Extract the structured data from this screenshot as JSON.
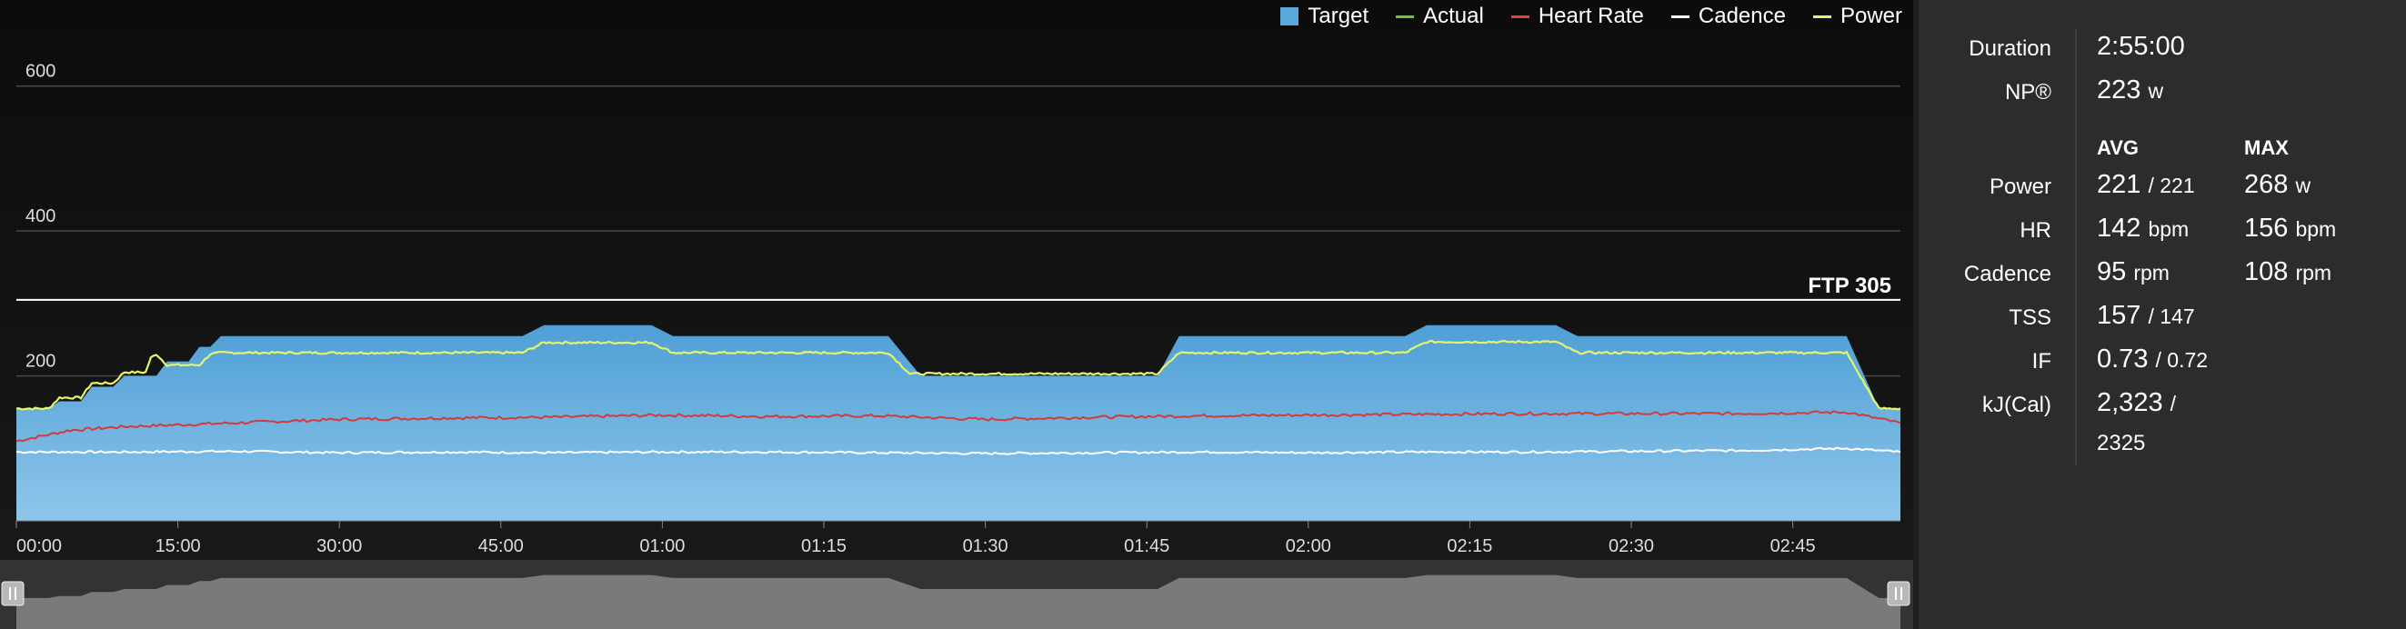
{
  "legend": [
    {
      "label": "Target",
      "kind": "box",
      "color": "#5aa8dc"
    },
    {
      "label": "Actual",
      "kind": "line",
      "color": "#6cc644"
    },
    {
      "label": "Heart Rate",
      "kind": "line",
      "color": "#e0443e"
    },
    {
      "label": "Cadence",
      "kind": "line",
      "color": "#ffffff"
    },
    {
      "label": "Power",
      "kind": "line",
      "color": "#e6f46a"
    }
  ],
  "colors": {
    "target": "#5aa8dc",
    "power": "#e6f46a",
    "heart_rate": "#d6393a",
    "cadence": "#ffffff",
    "navigator": "#7a7a7a"
  },
  "chart_data": {
    "type": "area",
    "xlabel": "",
    "ylabel": "",
    "xlim": [
      0,
      175
    ],
    "ylim": [
      0,
      700
    ],
    "y_ticks": [
      {
        "value": 200,
        "label": "200"
      },
      {
        "value": 400,
        "label": "400"
      },
      {
        "value": 600,
        "label": "600"
      }
    ],
    "x_ticks": [
      {
        "value": 0,
        "label": "00:00"
      },
      {
        "value": 15,
        "label": "15:00"
      },
      {
        "value": 30,
        "label": "30:00"
      },
      {
        "value": 45,
        "label": "45:00"
      },
      {
        "value": 60,
        "label": "01:00"
      },
      {
        "value": 75,
        "label": "01:15"
      },
      {
        "value": 90,
        "label": "01:30"
      },
      {
        "value": 105,
        "label": "01:45"
      },
      {
        "value": 120,
        "label": "02:00"
      },
      {
        "value": 135,
        "label": "02:15"
      },
      {
        "value": 150,
        "label": "02:30"
      },
      {
        "value": 165,
        "label": "02:45"
      }
    ],
    "ftp": {
      "value": 305,
      "label": "FTP 305"
    },
    "series": [
      {
        "name": "Target",
        "x": [
          0,
          3,
          4,
          6,
          7,
          9,
          10,
          13,
          14,
          16,
          17,
          18,
          19,
          47,
          49,
          59,
          61,
          81,
          84,
          106,
          108,
          129,
          131,
          143,
          145,
          170,
          173,
          175
        ],
        "y": [
          155,
          155,
          165,
          165,
          185,
          185,
          200,
          200,
          220,
          220,
          240,
          240,
          255,
          255,
          270,
          270,
          255,
          255,
          200,
          200,
          255,
          255,
          270,
          270,
          255,
          255,
          155,
          155
        ]
      },
      {
        "name": "Power",
        "x": [
          0,
          3,
          4,
          6,
          7,
          9,
          10,
          12,
          12.5,
          13,
          14,
          17,
          18,
          19,
          47,
          49,
          59,
          61,
          81,
          83,
          106,
          108,
          129,
          131,
          143,
          145,
          170,
          173,
          175
        ],
        "y": [
          155,
          155,
          170,
          170,
          190,
          190,
          205,
          205,
          225,
          230,
          215,
          215,
          230,
          232,
          232,
          246,
          246,
          232,
          232,
          203,
          203,
          232,
          232,
          247,
          247,
          232,
          232,
          155,
          155
        ]
      },
      {
        "name": "Heart Rate",
        "x": [
          0,
          5,
          10,
          20,
          30,
          40,
          50,
          60,
          70,
          80,
          90,
          100,
          110,
          120,
          130,
          140,
          150,
          160,
          170,
          175
        ],
        "y": [
          110,
          125,
          130,
          135,
          140,
          142,
          143,
          146,
          144,
          145,
          140,
          143,
          145,
          146,
          147,
          148,
          148,
          148,
          150,
          135
        ]
      },
      {
        "name": "Cadence",
        "x": [
          0,
          10,
          20,
          30,
          40,
          50,
          60,
          70,
          80,
          90,
          100,
          110,
          120,
          130,
          140,
          150,
          160,
          170,
          175
        ],
        "y": [
          95,
          95,
          96,
          94,
          95,
          94,
          95,
          95,
          94,
          93,
          94,
          95,
          94,
          95,
          95,
          96,
          97,
          100,
          95
        ]
      }
    ]
  },
  "stats": {
    "duration": {
      "label": "Duration",
      "value": "2:55:00"
    },
    "np": {
      "label": "NP®",
      "value": "223",
      "unit": "w"
    },
    "avg_header": "AVG",
    "max_header": "MAX",
    "rows": [
      {
        "label": "Power",
        "avg": "221",
        "avg_sub": "/ 221",
        "max": "268",
        "max_unit": "w"
      },
      {
        "label": "HR",
        "avg": "142",
        "avg_sub": "bpm",
        "max": "156",
        "max_unit": "bpm"
      },
      {
        "label": "Cadence",
        "avg": "95",
        "avg_sub": "rpm",
        "max": "108",
        "max_unit": "rpm"
      },
      {
        "label": "TSS",
        "avg": "157",
        "avg_sub": "/ 147",
        "max": "",
        "max_unit": ""
      },
      {
        "label": "IF",
        "avg": "0.73",
        "avg_sub": "/ 0.72",
        "max": "",
        "max_unit": ""
      },
      {
        "label": "kJ(Cal)",
        "avg": "2,323",
        "avg_sub": "/",
        "max": "",
        "max_unit": ""
      }
    ],
    "kj_cont": "2325"
  }
}
